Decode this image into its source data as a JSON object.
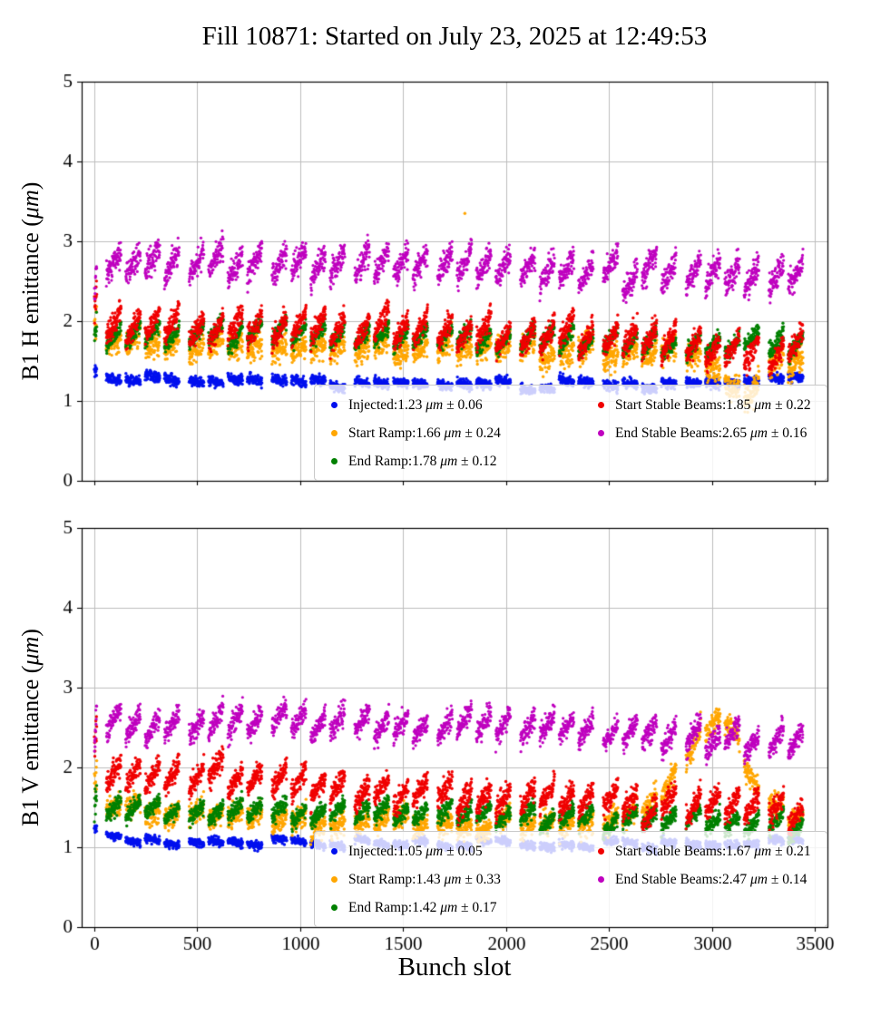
{
  "title": "Fill 10871: Started on July 23, 2025 at 12:49:53",
  "xlabel": "Bunch slot",
  "colors": {
    "grid": "#bdbdbd",
    "axes": "#000000",
    "legend_border": "#c9c9c9",
    "legend_bg": "rgba(255,255,255,0.8)"
  },
  "chart_data": [
    {
      "id": "b1h",
      "type": "scatter",
      "ylabel": {
        "prefix": "B1 H emittance (",
        "unit": "μm",
        "suffix": ")"
      },
      "xlim": [
        -60,
        3560
      ],
      "ylim": [
        0,
        5
      ],
      "xticks": [
        0,
        500,
        1000,
        1500,
        2000,
        2500,
        3000,
        3500
      ],
      "yticks": [
        0,
        1,
        2,
        3,
        4,
        5
      ],
      "show_x_tick_labels": false,
      "grid": true,
      "legend_position": "lower right",
      "trains": {
        "initial_start": 2,
        "initial_len": 12,
        "first_start": 60,
        "train_len": 72,
        "gap": 22,
        "extra_gap_every": 4,
        "extra_gap": 26,
        "last_end": 3450
      },
      "series": [
        {
          "name": "Injected",
          "color": "#0010ee",
          "marker_r": 1.7,
          "mean": 1.23,
          "std": 0.06,
          "legend": {
            "name": "Injected:",
            "value": "1.23 ",
            "unit": "μm",
            "err": " ± 0.06"
          },
          "trend": [
            [
              0,
              1.46
            ],
            [
              55,
              1.27
            ],
            [
              1000,
              1.24
            ],
            [
              2000,
              1.22
            ],
            [
              3000,
              1.22
            ],
            [
              3450,
              1.27
            ]
          ],
          "slope": -0.04,
          "train_jitter": 0.032,
          "noise": 0.03,
          "seed": 11,
          "outliers": []
        },
        {
          "name": "Start Ramp",
          "color": "#ffa600",
          "marker_r": 1.7,
          "mean": 1.66,
          "std": 0.24,
          "legend": {
            "name": "Start Ramp:",
            "value": "1.66 ",
            "unit": "μm",
            "err": " ± 0.24"
          },
          "trend": [
            [
              0,
              2.1
            ],
            [
              55,
              1.78
            ],
            [
              800,
              1.72
            ],
            [
              1600,
              1.66
            ],
            [
              2400,
              1.62
            ],
            [
              2850,
              1.58
            ],
            [
              3000,
              1.45
            ],
            [
              3100,
              1.15
            ],
            [
              3190,
              1.0
            ],
            [
              3270,
              1.4
            ],
            [
              3450,
              1.5
            ]
          ],
          "slope": 0.14,
          "train_jitter": 0.05,
          "noise": 0.08,
          "seed": 22,
          "outliers": [
            [
              1800,
              3.35
            ]
          ]
        },
        {
          "name": "End Ramp",
          "color": "#008000",
          "marker_r": 1.7,
          "mean": 1.78,
          "std": 0.12,
          "legend": {
            "name": "End Ramp:",
            "value": "1.78 ",
            "unit": "μm",
            "err": " ± 0.12"
          },
          "trend": [
            [
              0,
              1.82
            ],
            [
              55,
              1.8
            ],
            [
              1000,
              1.84
            ],
            [
              2000,
              1.8
            ],
            [
              2600,
              1.76
            ],
            [
              3000,
              1.7
            ],
            [
              3450,
              1.68
            ]
          ],
          "slope": 0.24,
          "train_jitter": 0.04,
          "noise": 0.05,
          "seed": 33,
          "outliers": []
        },
        {
          "name": "Start Stable Beams",
          "color": "#f00000",
          "marker_r": 1.7,
          "mean": 1.85,
          "std": 0.22,
          "legend": {
            "name": "Start Stable Beams:",
            "value": "1.85 ",
            "unit": "μm",
            "err": " ± 0.22"
          },
          "trend": [
            [
              0,
              2.4
            ],
            [
              55,
              1.98
            ],
            [
              1000,
              1.95
            ],
            [
              2000,
              1.85
            ],
            [
              2600,
              1.76
            ],
            [
              3100,
              1.66
            ],
            [
              3450,
              1.62
            ]
          ],
          "slope": 0.34,
          "train_jitter": 0.05,
          "noise": 0.07,
          "seed": 44,
          "outliers": []
        },
        {
          "name": "End Stable Beams",
          "color": "#bf00bf",
          "marker_r": 1.6,
          "mean": 2.65,
          "std": 0.16,
          "legend": {
            "name": "End Stable Beams:",
            "value": "2.65 ",
            "unit": "μm",
            "err": " ± 0.16"
          },
          "trend": [
            [
              0,
              2.5
            ],
            [
              55,
              2.72
            ],
            [
              1000,
              2.76
            ],
            [
              2000,
              2.7
            ],
            [
              2600,
              2.62
            ],
            [
              3100,
              2.56
            ],
            [
              3450,
              2.5
            ]
          ],
          "slope": 0.34,
          "train_jitter": 0.05,
          "noise": 0.08,
          "seed": 55,
          "outliers": []
        }
      ]
    },
    {
      "id": "b1v",
      "type": "scatter",
      "ylabel": {
        "prefix": "B1 V emittance (",
        "unit": "μm",
        "suffix": ")"
      },
      "xlim": [
        -60,
        3560
      ],
      "ylim": [
        0,
        5
      ],
      "xticks": [
        0,
        500,
        1000,
        1500,
        2000,
        2500,
        3000,
        3500
      ],
      "yticks": [
        0,
        1,
        2,
        3,
        4,
        5
      ],
      "show_x_tick_labels": true,
      "grid": true,
      "legend_position": "lower right",
      "trains": {
        "initial_start": 2,
        "initial_len": 12,
        "first_start": 60,
        "train_len": 72,
        "gap": 22,
        "extra_gap_every": 4,
        "extra_gap": 26,
        "last_end": 3450
      },
      "series": [
        {
          "name": "Injected",
          "color": "#0010ee",
          "marker_r": 1.7,
          "mean": 1.05,
          "std": 0.05,
          "legend": {
            "name": "Injected:",
            "value": "1.05 ",
            "unit": "μm",
            "err": " ± 0.05"
          },
          "trend": [
            [
              0,
              1.22
            ],
            [
              55,
              1.1
            ],
            [
              800,
              1.05
            ],
            [
              2000,
              1.02
            ],
            [
              3000,
              1.02
            ],
            [
              3450,
              1.1
            ]
          ],
          "slope": -0.03,
          "train_jitter": 0.03,
          "noise": 0.025,
          "seed": 66,
          "outliers": []
        },
        {
          "name": "Start Ramp",
          "color": "#ffa600",
          "marker_r": 1.7,
          "mean": 1.43,
          "std": 0.33,
          "legend": {
            "name": "Start Ramp:",
            "value": "1.43 ",
            "unit": "μm",
            "err": " ± 0.33"
          },
          "trend": [
            [
              0,
              1.8
            ],
            [
              55,
              1.52
            ],
            [
              500,
              1.42
            ],
            [
              1000,
              1.36
            ],
            [
              1800,
              1.3
            ],
            [
              2500,
              1.28
            ],
            [
              2700,
              1.5
            ],
            [
              2850,
              2.02
            ],
            [
              2950,
              2.45
            ],
            [
              3030,
              2.62
            ],
            [
              3090,
              2.5
            ],
            [
              3160,
              2.1
            ],
            [
              3230,
              1.7
            ],
            [
              3310,
              1.45
            ],
            [
              3450,
              1.35
            ]
          ],
          "slope": 0.12,
          "train_jitter": 0.05,
          "noise": 0.07,
          "seed": 77,
          "outliers": []
        },
        {
          "name": "End Ramp",
          "color": "#008000",
          "marker_r": 1.7,
          "mean": 1.42,
          "std": 0.17,
          "legend": {
            "name": "End Ramp:",
            "value": "1.42 ",
            "unit": "μm",
            "err": " ± 0.17"
          },
          "trend": [
            [
              0,
              1.62
            ],
            [
              55,
              1.5
            ],
            [
              1000,
              1.45
            ],
            [
              2000,
              1.4
            ],
            [
              3000,
              1.34
            ],
            [
              3450,
              1.3
            ]
          ],
          "slope": 0.2,
          "train_jitter": 0.04,
          "noise": 0.05,
          "seed": 88,
          "outliers": []
        },
        {
          "name": "Start Stable Beams",
          "color": "#f00000",
          "marker_r": 1.7,
          "mean": 1.67,
          "std": 0.21,
          "legend": {
            "name": "Start Stable Beams:",
            "value": "1.67 ",
            "unit": "μm",
            "err": " ± 0.21"
          },
          "trend": [
            [
              0,
              2.3
            ],
            [
              55,
              1.95
            ],
            [
              500,
              1.9
            ],
            [
              1000,
              1.8
            ],
            [
              1500,
              1.72
            ],
            [
              2000,
              1.62
            ],
            [
              2500,
              1.56
            ],
            [
              3000,
              1.5
            ],
            [
              3450,
              1.46
            ]
          ],
          "slope": 0.3,
          "train_jitter": 0.05,
          "noise": 0.07,
          "seed": 99,
          "outliers": []
        },
        {
          "name": "End Stable Beams",
          "color": "#bf00bf",
          "marker_r": 1.6,
          "mean": 2.47,
          "std": 0.14,
          "legend": {
            "name": "End Stable Beams:",
            "value": "2.47 ",
            "unit": "μm",
            "err": " ± 0.14"
          },
          "trend": [
            [
              0,
              2.42
            ],
            [
              55,
              2.52
            ],
            [
              1000,
              2.56
            ],
            [
              2000,
              2.5
            ],
            [
              2600,
              2.44
            ],
            [
              3000,
              2.38
            ],
            [
              3450,
              2.3
            ]
          ],
          "slope": 0.3,
          "train_jitter": 0.04,
          "noise": 0.07,
          "seed": 110,
          "outliers": []
        }
      ]
    }
  ]
}
